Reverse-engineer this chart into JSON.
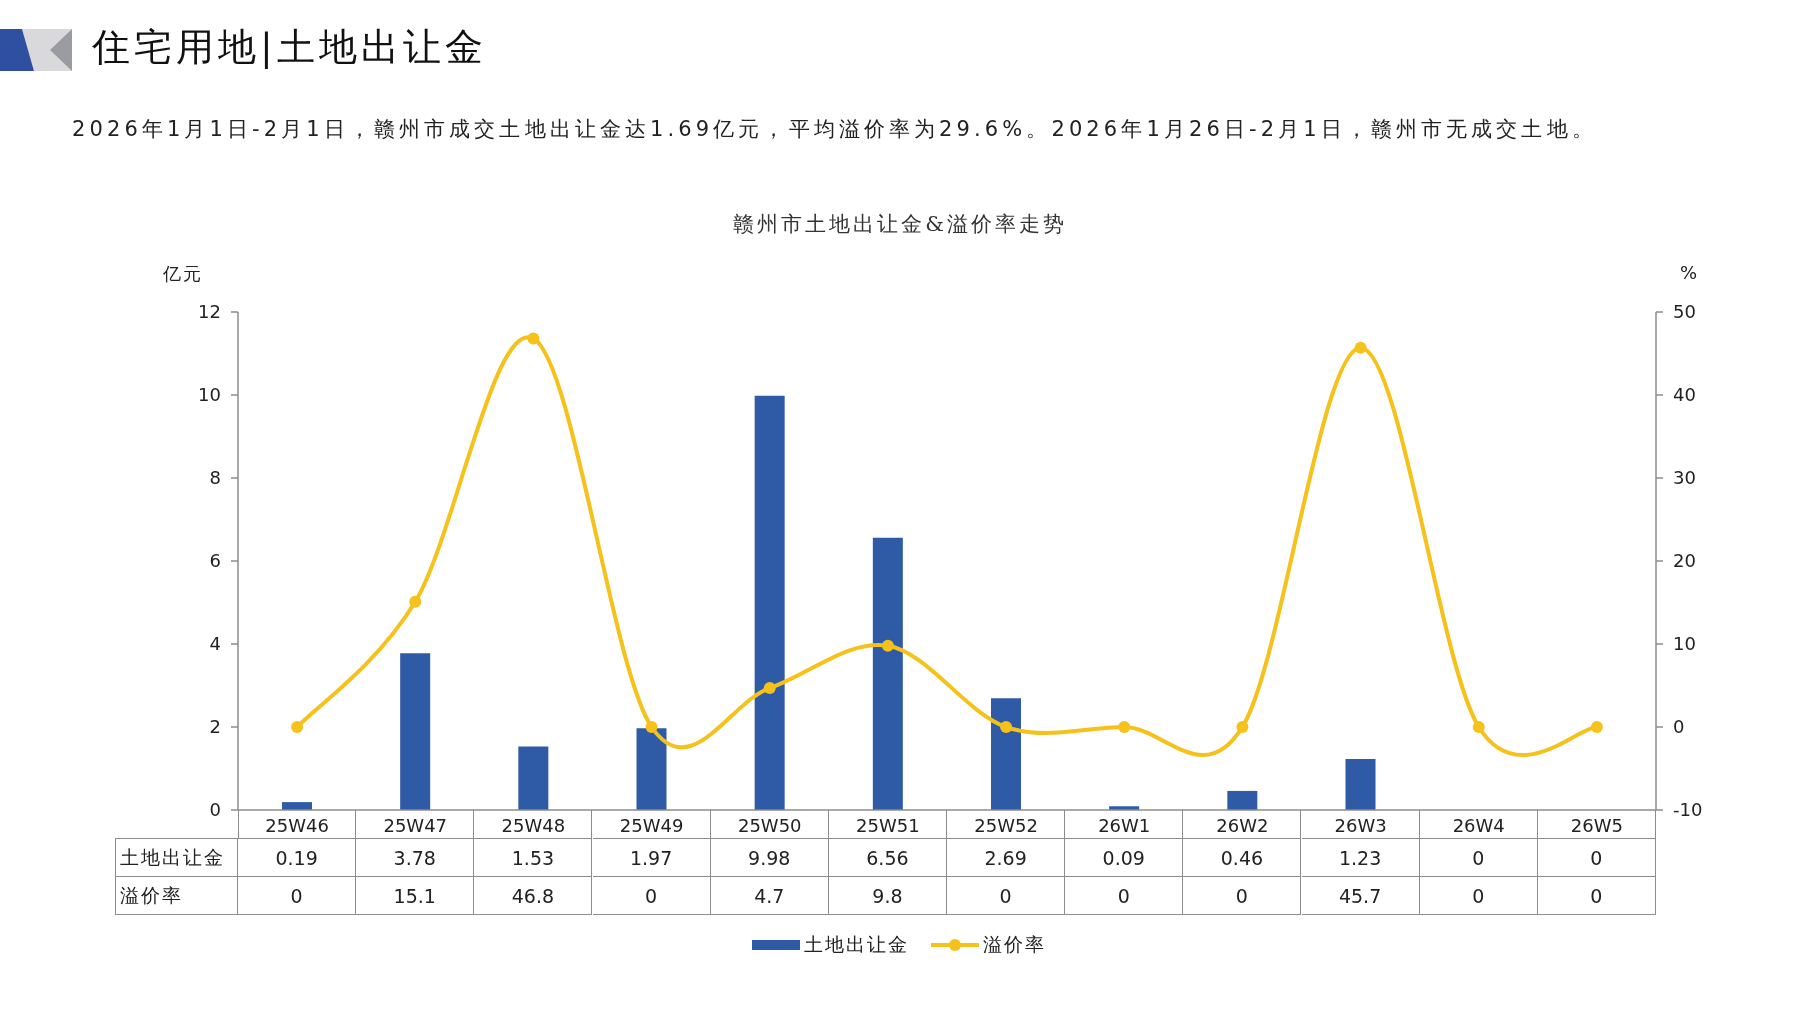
{
  "chart_data": {
    "type": "bar",
    "title": "赣州市土地出让金&溢价率走势",
    "annotations": [
      "住宅用地|土地出让金",
      "2026年1月1日-2月1日，赣州市成交土地出让金达1.69亿元，平均溢价率为29.6%。2026年1月26日-2月1日，赣州市无成交土地。"
    ],
    "ylabel": "亿元",
    "y2label": "%",
    "categories": [
      "25W46",
      "25W47",
      "25W48",
      "25W49",
      "25W50",
      "25W51",
      "25W52",
      "26W1",
      "26W2",
      "26W3",
      "26W4",
      "26W5"
    ],
    "series": [
      {
        "name": "土地出让金",
        "color": "#2f5aa6",
        "values": [
          0.19,
          3.78,
          1.53,
          1.97,
          9.98,
          6.56,
          2.69,
          0.09,
          0.46,
          1.23,
          0,
          0
        ]
      },
      {
        "name": "溢价率",
        "type": "line",
        "axis": "y2",
        "color": "#f5c11a",
        "values": [
          0,
          15.1,
          46.8,
          0,
          4.7,
          9.8,
          0,
          0,
          0,
          45.7,
          0,
          0
        ]
      }
    ],
    "ylim": [
      0,
      12
    ],
    "yticks": [
      0,
      2,
      4,
      6,
      8,
      10,
      12
    ],
    "y2lim": [
      -10,
      50
    ],
    "y2ticks": [
      -10,
      0,
      10,
      20,
      30,
      40,
      50
    ],
    "legend": "bottom",
    "marker": "circle",
    "data_labels": true
  }
}
